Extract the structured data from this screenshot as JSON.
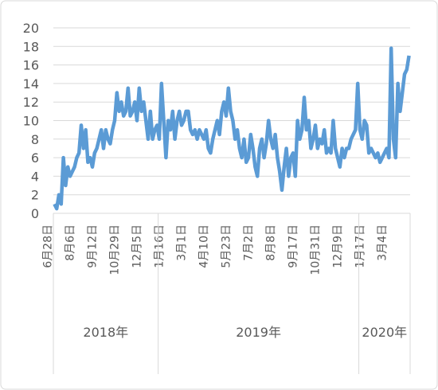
{
  "chart_data": {
    "type": "line",
    "categories": [
      "6月28日",
      null,
      null,
      null,
      null,
      null,
      null,
      null,
      null,
      null,
      "8月6日",
      null,
      null,
      null,
      null,
      null,
      null,
      null,
      null,
      null,
      "9月12日",
      null,
      null,
      null,
      null,
      null,
      null,
      null,
      null,
      null,
      "10月29日",
      null,
      null,
      null,
      null,
      null,
      null,
      null,
      null,
      null,
      "12月5日",
      null,
      null,
      null,
      null,
      null,
      null,
      null,
      null,
      null,
      "1月16日",
      null,
      null,
      null,
      null,
      null,
      null,
      null,
      null,
      null,
      "3月1日",
      null,
      null,
      null,
      null,
      null,
      null,
      null,
      null,
      null,
      "4月10日",
      null,
      null,
      null,
      null,
      null,
      null,
      null,
      null,
      null,
      "5月23日",
      null,
      null,
      null,
      null,
      null,
      null,
      null,
      null,
      null,
      "7月2日",
      null,
      null,
      null,
      null,
      null,
      null,
      null,
      null,
      null,
      "8月8日",
      null,
      null,
      null,
      null,
      null,
      null,
      null,
      null,
      null,
      "9月17日",
      null,
      null,
      null,
      null,
      null,
      null,
      null,
      null,
      null,
      "10月31日",
      null,
      null,
      null,
      null,
      null,
      null,
      null,
      null,
      null,
      "12月9日",
      null,
      null,
      null,
      null,
      null,
      null,
      null,
      null,
      null,
      "1月17日",
      null,
      null,
      null,
      null,
      null,
      null,
      null,
      null,
      null,
      "3月4日",
      null,
      null,
      null,
      null,
      null,
      null,
      null,
      null,
      null
    ],
    "year_groups": [
      {
        "label": "2018年",
        "count": 47
      },
      {
        "label": "2019年",
        "count": 90
      },
      {
        "label": "2020年",
        "count": 23
      }
    ],
    "series": [
      {
        "color": "#5b9bd5",
        "values": [
          1,
          0.5,
          2,
          1,
          6,
          3,
          5,
          4,
          4.5,
          5,
          6,
          6.5,
          9.5,
          7,
          9,
          5.5,
          6,
          5,
          6.5,
          7,
          8,
          9,
          7,
          9,
          8,
          7.5,
          9,
          10,
          13,
          11,
          12,
          10.5,
          11,
          13.5,
          10.5,
          11,
          12,
          10,
          13.5,
          11,
          12,
          10,
          8,
          11,
          8,
          9,
          9.5,
          8,
          14,
          10,
          6,
          10,
          9,
          11,
          8,
          10,
          11,
          9.5,
          10,
          11,
          11,
          9,
          8.5,
          9,
          8,
          9,
          8.5,
          8,
          9,
          7,
          6.5,
          8,
          9,
          10,
          8.5,
          11,
          12,
          10.5,
          13.5,
          11,
          10,
          8,
          9,
          7,
          6,
          8,
          5.5,
          6,
          8.5,
          7,
          5,
          4,
          7,
          8,
          6,
          7.5,
          10,
          8,
          7,
          8.5,
          6,
          4.5,
          2.5,
          5,
          7,
          4,
          6,
          6.5,
          4,
          10,
          8,
          9,
          12.5,
          9,
          10,
          7,
          8,
          9.5,
          7,
          8,
          7.5,
          9,
          6.5,
          7,
          6.5,
          10,
          7,
          6,
          5,
          7,
          6,
          7,
          7,
          8,
          8.5,
          9,
          14,
          9,
          8,
          10,
          9.5,
          6.5,
          7,
          6.5,
          6,
          6.5,
          5.5,
          6,
          6.5,
          7,
          6,
          17.8,
          8,
          6,
          14,
          11,
          13,
          15,
          15.5,
          17
        ]
      }
    ],
    "ylim": [
      0,
      20
    ],
    "yticks": [
      0,
      2,
      4,
      6,
      8,
      10,
      12,
      14,
      16,
      18,
      20
    ],
    "grid": true
  }
}
